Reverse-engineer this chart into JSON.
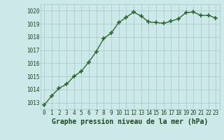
{
  "x": [
    0,
    1,
    2,
    3,
    4,
    5,
    6,
    7,
    8,
    9,
    10,
    11,
    12,
    13,
    14,
    15,
    16,
    17,
    18,
    19,
    20,
    21,
    22,
    23
  ],
  "y": [
    1012.8,
    1013.5,
    1014.1,
    1014.4,
    1015.0,
    1015.4,
    1016.1,
    1016.9,
    1017.9,
    1018.3,
    1019.1,
    1019.5,
    1019.9,
    1019.6,
    1019.15,
    1019.1,
    1019.05,
    1019.2,
    1019.4,
    1019.85,
    1019.9,
    1019.65,
    1019.65,
    1019.45
  ],
  "line_color": "#2d6a2d",
  "marker": "+",
  "marker_size": 5,
  "bg_color": "#cce8e8",
  "grid_color": "#aacccc",
  "xlabel": "Graphe pression niveau de la mer (hPa)",
  "xlabel_color": "#1a4a1a",
  "xlabel_fontsize": 7,
  "ytick_labels": [
    "1013",
    "1014",
    "1015",
    "1016",
    "1017",
    "1018",
    "1019",
    "1020"
  ],
  "ytick_values": [
    1013,
    1014,
    1015,
    1016,
    1017,
    1018,
    1019,
    1020
  ],
  "xtick_labels": [
    "0",
    "1",
    "2",
    "3",
    "4",
    "5",
    "6",
    "7",
    "8",
    "9",
    "10",
    "11",
    "12",
    "13",
    "14",
    "15",
    "16",
    "17",
    "18",
    "19",
    "20",
    "21",
    "22",
    "23"
  ],
  "ylim": [
    1012.5,
    1020.5
  ],
  "xlim": [
    -0.5,
    23.5
  ],
  "tick_color": "#1a4a1a",
  "tick_fontsize": 5.5,
  "linewidth": 1.0
}
